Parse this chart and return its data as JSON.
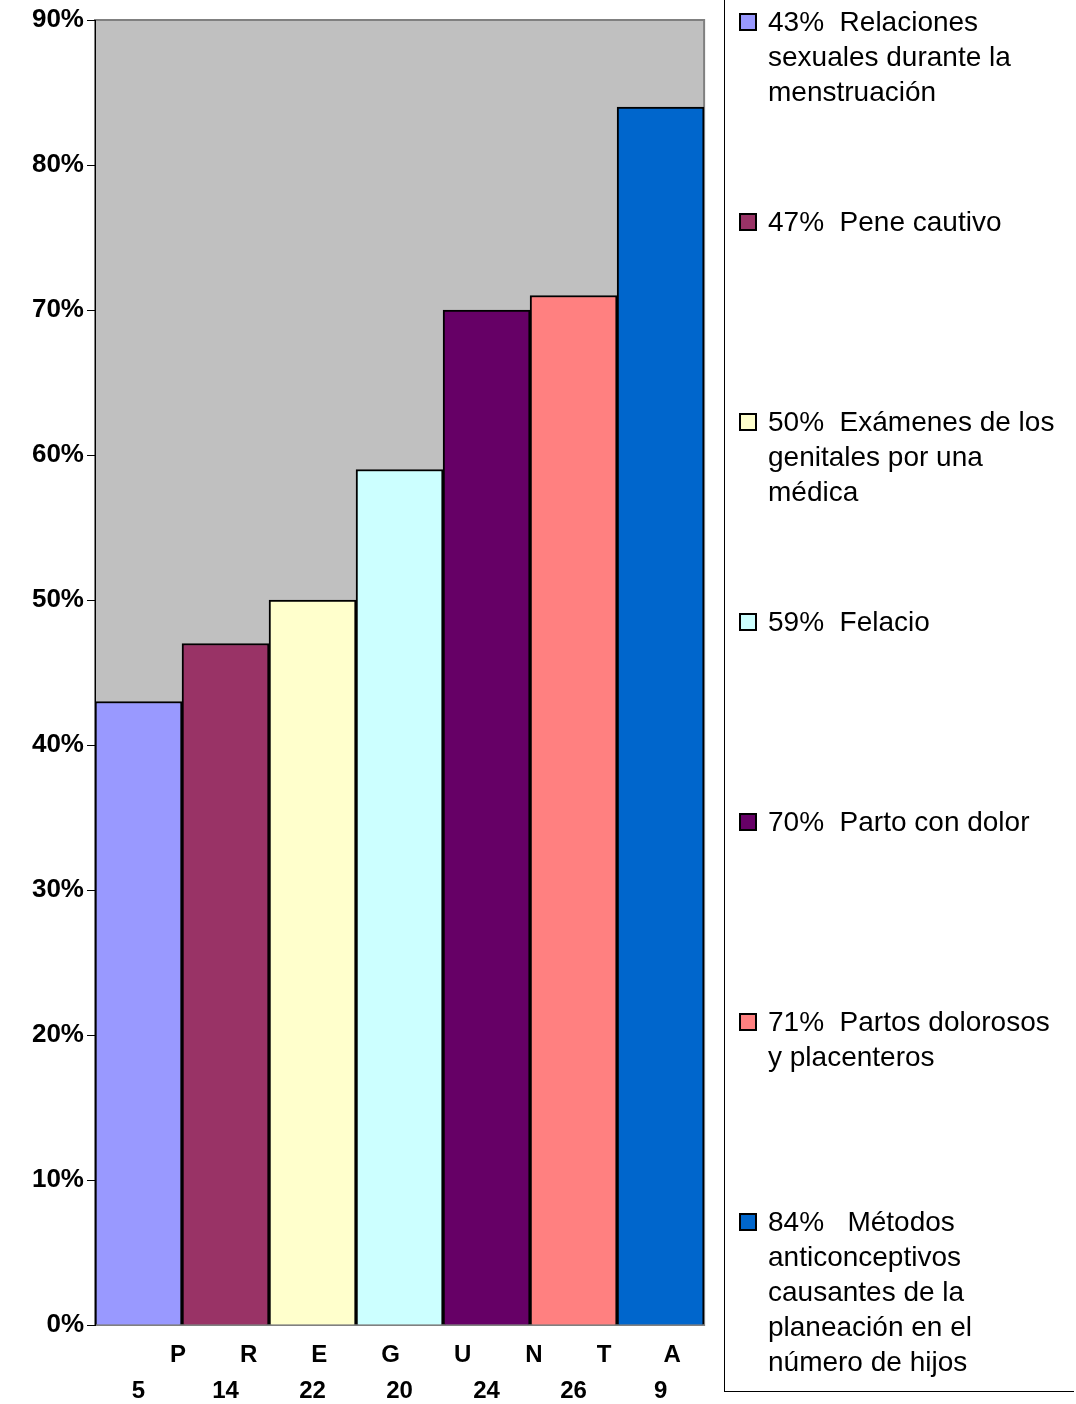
{
  "chart_data": {
    "type": "bar",
    "xlabel": "PREGUNTA",
    "categories": [
      "5",
      "14",
      "22",
      "20",
      "24",
      "26",
      "9"
    ],
    "series": [
      {
        "name": "43%  Relaciones sexuales durante la menstruación",
        "color": "#9999ff",
        "values": [
          43,
          null,
          null,
          null,
          null,
          null,
          null
        ]
      },
      {
        "name": "47%  Pene cautivo",
        "color": "#993366",
        "values": [
          null,
          47,
          null,
          null,
          null,
          null,
          null
        ]
      },
      {
        "name": "50%  Exámenes de los genitales por una médica",
        "color": "#ffffcc",
        "values": [
          null,
          null,
          50,
          null,
          null,
          null,
          null
        ]
      },
      {
        "name": "59%  Felacio",
        "color": "#ccffff",
        "values": [
          null,
          null,
          null,
          59,
          null,
          null,
          null
        ]
      },
      {
        "name": "70%  Parto con dolor",
        "color": "#660066",
        "values": [
          null,
          null,
          null,
          null,
          70,
          null,
          null
        ]
      },
      {
        "name": "71%  Partos dolorosos y placenteros",
        "color": "#ff8080",
        "values": [
          null,
          null,
          null,
          null,
          null,
          71,
          null
        ]
      },
      {
        "name": "84%   Métodos anticonceptivos causantes de la planeación en el número de hijos",
        "color": "#0066cc",
        "values": [
          null,
          null,
          null,
          null,
          null,
          null,
          84
        ]
      }
    ],
    "ylim": [
      0,
      90
    ],
    "yticks": [
      {
        "value": 0,
        "label": "0%"
      },
      {
        "value": 10,
        "label": "10%"
      },
      {
        "value": 20,
        "label": "20%"
      },
      {
        "value": 30,
        "label": "30%"
      },
      {
        "value": 40,
        "label": "40%"
      },
      {
        "value": 50,
        "label": "50%"
      },
      {
        "value": 60,
        "label": "60%"
      },
      {
        "value": 70,
        "label": "70%"
      },
      {
        "value": 80,
        "label": "80%"
      },
      {
        "value": 90,
        "label": "90%"
      }
    ],
    "grid": false,
    "legend": "right"
  }
}
